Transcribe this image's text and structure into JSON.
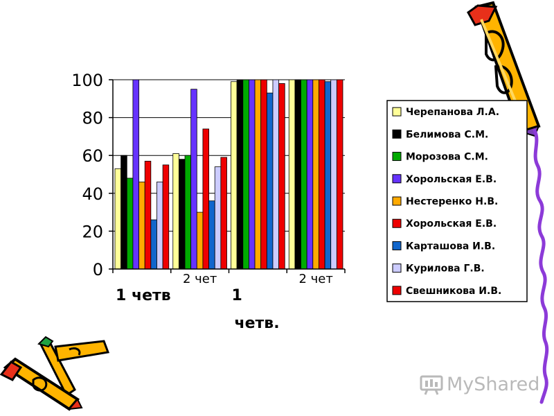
{
  "chart_data": {
    "type": "bar",
    "title": "",
    "xlabel": "",
    "ylabel": "",
    "ylim": [
      0,
      100
    ],
    "yticks": [
      0,
      20,
      40,
      60,
      80,
      100
    ],
    "grid": "horizontal",
    "legend_position": "right",
    "categories": [
      "1 четв",
      "2 чет",
      "1 четв.",
      "2 чет"
    ],
    "category_label_rows": {
      "upper": [
        {
          "category": 1,
          "text": "2 чет"
        },
        {
          "category": 3,
          "text": "2 чет"
        }
      ],
      "lower": [
        {
          "category": 0,
          "text": "1 четв"
        },
        {
          "category": 2,
          "text": "1"
        }
      ],
      "bottom": [
        {
          "category": 2,
          "text": "четв."
        }
      ]
    },
    "series": [
      {
        "name": "Черепанова   Л.А.",
        "color": "#ffff99",
        "values": [
          53,
          61,
          99,
          100
        ]
      },
      {
        "name": "Белимова С.М.",
        "color": "#000000",
        "values": [
          60,
          58,
          100,
          100
        ]
      },
      {
        "name": "Морозова С.М.",
        "color": "#00aa00",
        "values": [
          48,
          60,
          100,
          100
        ]
      },
      {
        "name": "Хорольская Е.В.",
        "color": "#6633ff",
        "values": [
          100,
          95,
          100,
          100
        ]
      },
      {
        "name": "Нестеренко Н.В.",
        "color": "#ffaa00",
        "values": [
          46,
          30,
          100,
          100
        ]
      },
      {
        "name": "Хорольская Е.В.",
        "color": "#ee0000",
        "values": [
          57,
          74,
          100,
          100
        ]
      },
      {
        "name": "Карташова И.В.",
        "color": "#1166cc",
        "values": [
          26,
          36,
          93,
          99
        ]
      },
      {
        "name": "Курилова Г.В.",
        "color": "#ccccff",
        "values": [
          46,
          54,
          100,
          100
        ]
      },
      {
        "name": "Свешникова И.В.",
        "color": "#ee0000",
        "values": [
          55,
          59,
          98,
          100
        ]
      }
    ]
  },
  "watermark": {
    "text": "MyShared"
  }
}
